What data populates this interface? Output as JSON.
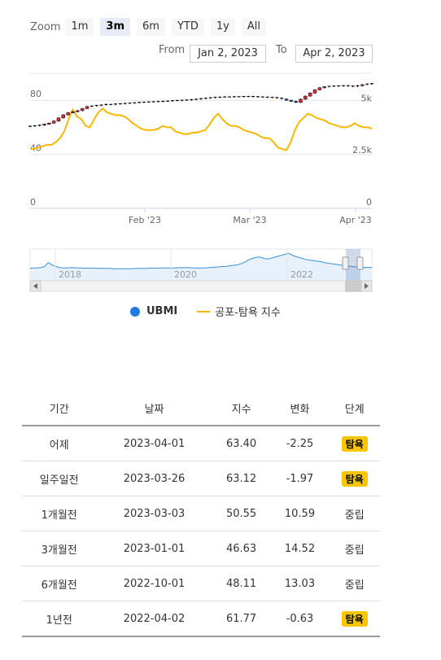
{
  "zoom": {
    "label": "Zoom",
    "buttons": [
      "1m",
      "3m",
      "6m",
      "YTD",
      "1y",
      "All"
    ],
    "active": "3m"
  },
  "range": {
    "from_label": "From",
    "from_value": "Jan 2, 2023",
    "to_label": "To",
    "to_value": "Apr 2, 2023"
  },
  "chart_data": {
    "type": "line",
    "x_tick_labels": [
      "Feb '23",
      "Mar '23",
      "Apr '23"
    ],
    "y_left_ticks": [
      "0",
      "40",
      "80"
    ],
    "y_right_ticks": [
      "0",
      "2.5k",
      "5k"
    ],
    "y_left_range": [
      0,
      100
    ],
    "y_right_range": [
      0,
      6500
    ],
    "series": [
      {
        "name": "UBMI",
        "type": "candlestick",
        "axis": "right",
        "color_up": "#d9303b",
        "color_down": "#2f6fd6",
        "close": [
          3950,
          3970,
          4000,
          4050,
          4100,
          4200,
          4350,
          4500,
          4600,
          4650,
          4700,
          4800,
          4900,
          4920,
          4950,
          4970,
          5000,
          4990,
          5020,
          5030,
          5050,
          5060,
          5080,
          5100,
          5110,
          5120,
          5130,
          5140,
          5150,
          5160,
          5180,
          5190,
          5200,
          5210,
          5230,
          5250,
          5280,
          5300,
          5320,
          5340,
          5350,
          5360,
          5360,
          5370,
          5370,
          5380,
          5380,
          5370,
          5360,
          5350,
          5340,
          5330,
          5300,
          5260,
          5200,
          5150,
          5100,
          5250,
          5400,
          5550,
          5700,
          5800,
          5850,
          5870,
          5880,
          5890,
          5900,
          5880,
          5860,
          5900,
          5950,
          5980,
          6000
        ]
      },
      {
        "name": "공포-탐욕 지수",
        "type": "line",
        "axis": "left",
        "color": "#f5b800",
        "values": [
          44,
          44,
          45,
          46,
          47,
          47,
          49,
          52,
          57,
          66,
          73,
          68,
          66,
          61,
          60,
          66,
          71,
          74,
          71,
          70,
          69,
          69,
          68,
          66,
          63,
          61,
          59,
          58,
          58,
          58,
          59,
          61,
          60,
          60,
          57,
          56,
          55,
          55,
          56,
          56,
          57,
          58,
          62,
          67,
          70,
          66,
          63,
          61,
          61,
          60,
          58,
          57,
          56,
          55,
          53,
          52,
          52,
          49,
          45,
          44,
          43,
          49,
          58,
          64,
          67,
          70,
          69,
          67,
          66,
          65,
          63,
          62,
          61,
          60,
          60,
          61,
          63,
          61,
          60,
          60,
          59
        ]
      }
    ],
    "navigator": {
      "x_tick_labels": [
        "2018",
        "2020",
        "2022"
      ],
      "values": [
        38,
        40,
        40,
        42,
        45,
        60,
        52,
        46,
        42,
        40,
        40,
        41,
        41,
        40,
        40,
        39,
        39,
        39,
        39,
        38,
        38,
        38,
        38,
        37,
        37,
        37,
        37,
        37,
        37,
        38,
        38,
        38,
        38,
        39,
        39,
        39,
        40,
        40,
        40,
        40,
        40,
        41,
        41,
        41,
        41,
        40,
        40,
        40,
        40,
        41,
        42,
        43,
        44,
        45,
        46,
        48,
        50,
        52,
        56,
        62,
        70,
        76,
        80,
        82,
        78,
        74,
        76,
        80,
        84,
        88,
        92,
        96,
        90,
        84,
        80,
        76,
        72,
        70,
        68,
        66,
        64,
        60,
        58,
        56,
        54,
        52,
        50,
        48,
        46,
        45,
        44,
        43,
        42,
        42,
        42
      ]
    }
  },
  "legend": {
    "ubmi": "UBMI",
    "fg": "공포-탐욕 지수"
  },
  "table": {
    "headers": [
      "기간",
      "날짜",
      "지수",
      "변화",
      "단계"
    ],
    "rows": [
      [
        "어제",
        "2023-04-01",
        "63.40",
        "-2.25",
        "탐욕"
      ],
      [
        "일주일전",
        "2023-03-26",
        "63.12",
        "-1.97",
        "탐욕"
      ],
      [
        "1개월전",
        "2023-03-03",
        "50.55",
        "10.59",
        "중립"
      ],
      [
        "3개월전",
        "2023-01-01",
        "46.63",
        "14.52",
        "중립"
      ],
      [
        "6개월전",
        "2022-10-01",
        "48.11",
        "13.03",
        "중립"
      ],
      [
        "1년전",
        "2022-04-02",
        "61.77",
        "-0.63",
        "탐욕"
      ]
    ],
    "badge_color": "#f7c600"
  }
}
